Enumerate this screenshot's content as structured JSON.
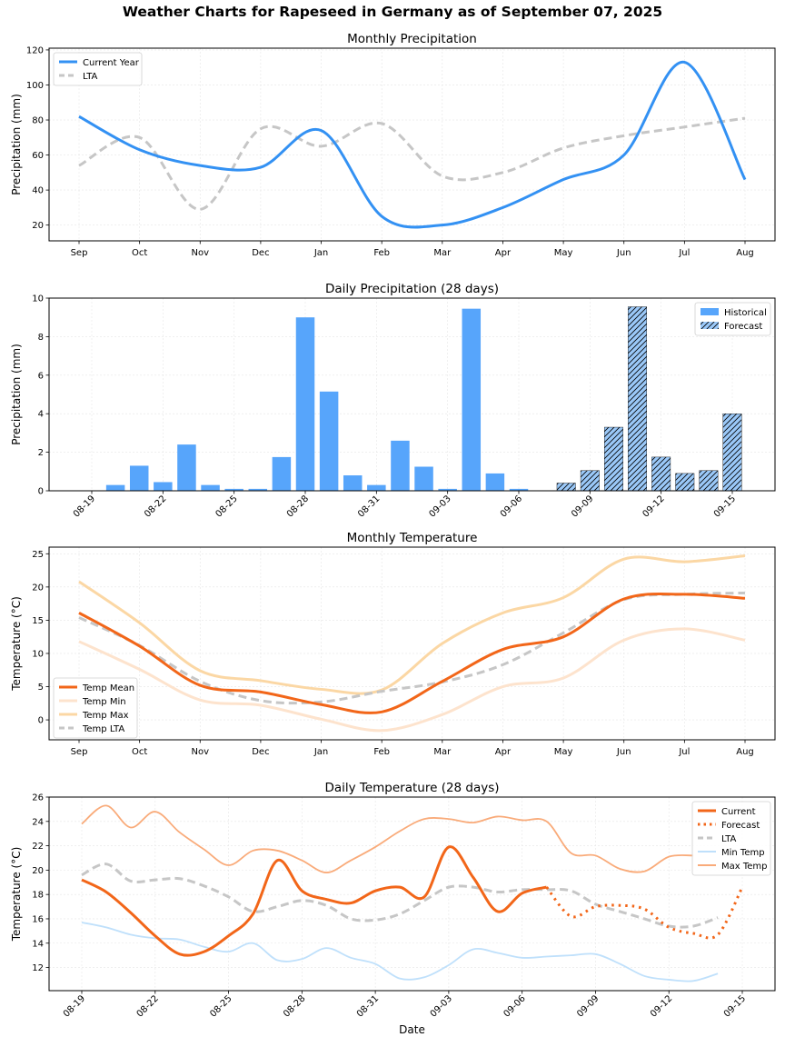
{
  "title": "Weather Charts for Rapeseed in Germany as of September 07, 2025",
  "colors": {
    "precip_current": "#3391f3",
    "lta": "#c6c6c6",
    "hist_bar": "#57a5fb",
    "forecast_bar": "#9ac8f8",
    "temp_mean": "#f26619",
    "temp_min": "#fde3cd",
    "temp_max": "#fbd7a4",
    "daily_min": "#bfe0fb",
    "daily_max": "#f9ab7a"
  },
  "chart_data": [
    {
      "id": "monthly_precip",
      "type": "line",
      "title": "Monthly Precipitation",
      "xlabel": "",
      "ylabel": "Precipitation (mm)",
      "categories": [
        "Sep",
        "Oct",
        "Nov",
        "Dec",
        "Jan",
        "Feb",
        "Mar",
        "Apr",
        "May",
        "Jun",
        "Jul",
        "Aug"
      ],
      "yticks": [
        20,
        40,
        60,
        80,
        100,
        120
      ],
      "ylim": [
        11,
        121
      ],
      "grid": true,
      "legend": "top-left",
      "series": [
        {
          "name": "Current Year",
          "style": "solid",
          "values": [
            82,
            63,
            54,
            53,
            74,
            25,
            20,
            30,
            46,
            60,
            113,
            46
          ]
        },
        {
          "name": "LTA",
          "style": "dashed",
          "values": [
            54,
            70,
            29,
            75,
            65,
            78,
            48,
            50,
            64,
            71,
            76,
            81
          ]
        }
      ]
    },
    {
      "id": "daily_precip",
      "type": "bar",
      "title": "Daily Precipitation (28 days)",
      "xlabel": "",
      "ylabel": "Precipitation (mm)",
      "categories": [
        "08-19",
        "08-20",
        "08-21",
        "08-22",
        "08-23",
        "08-24",
        "08-25",
        "08-26",
        "08-27",
        "08-28",
        "08-29",
        "08-30",
        "08-31",
        "09-01",
        "09-02",
        "09-03",
        "09-04",
        "09-05",
        "09-06",
        "09-07",
        "09-08",
        "09-09",
        "09-10",
        "09-11",
        "09-12",
        "09-13",
        "09-14",
        "09-15"
      ],
      "xtick_labels": [
        "08-19",
        "08-22",
        "08-25",
        "08-28",
        "08-31",
        "09-03",
        "09-06",
        "09-09",
        "09-12",
        "09-15"
      ],
      "yticks": [
        0,
        2,
        4,
        6,
        8,
        10
      ],
      "ylim": [
        0,
        10
      ],
      "grid": true,
      "legend": "top-right",
      "series": [
        {
          "name": "Historical",
          "values": [
            0,
            0.3,
            1.3,
            0.45,
            2.4,
            0.3,
            0.1,
            0.1,
            1.75,
            9.0,
            5.15,
            0.8,
            0.3,
            2.6,
            1.25,
            0.1,
            9.45,
            0.9,
            0.1,
            0,
            null,
            null,
            null,
            null,
            null,
            null,
            null,
            null
          ]
        },
        {
          "name": "Forecast",
          "values": [
            null,
            null,
            null,
            null,
            null,
            null,
            null,
            null,
            null,
            null,
            null,
            null,
            null,
            null,
            null,
            null,
            null,
            null,
            null,
            null,
            0.4,
            1.05,
            3.3,
            9.55,
            1.75,
            0.9,
            1.05,
            4.0
          ]
        }
      ]
    },
    {
      "id": "monthly_temp",
      "type": "line",
      "title": "Monthly Temperature",
      "xlabel": "",
      "ylabel": "Temperature (°C)",
      "categories": [
        "Sep",
        "Oct",
        "Nov",
        "Dec",
        "Jan",
        "Feb",
        "Mar",
        "Apr",
        "May",
        "Jun",
        "Jul",
        "Aug"
      ],
      "yticks": [
        0,
        5,
        10,
        15,
        20,
        25
      ],
      "ylim": [
        -3,
        26
      ],
      "grid": true,
      "legend": "bottom-left",
      "series": [
        {
          "name": "Temp Mean",
          "style": "solid",
          "values": [
            16.1,
            11.1,
            5.2,
            4.2,
            2.3,
            1.2,
            5.8,
            10.6,
            12.5,
            18.2,
            18.9,
            18.3
          ]
        },
        {
          "name": "Temp Min",
          "style": "solid",
          "values": [
            11.8,
            7.6,
            3.0,
            2.2,
            0.1,
            -1.6,
            0.8,
            5.0,
            6.3,
            12.0,
            13.7,
            12.0
          ]
        },
        {
          "name": "Temp Max",
          "style": "solid",
          "values": [
            20.8,
            14.6,
            7.4,
            5.9,
            4.6,
            4.5,
            11.5,
            16.1,
            18.4,
            24.2,
            23.8,
            24.7
          ]
        },
        {
          "name": "Temp LTA",
          "style": "dashed",
          "values": [
            15.4,
            11.2,
            5.8,
            2.9,
            2.7,
            4.3,
            5.7,
            8.3,
            13.1,
            18.1,
            18.9,
            19.1
          ]
        }
      ]
    },
    {
      "id": "daily_temp",
      "type": "line",
      "title": "Daily Temperature (28 days)",
      "xlabel": "Date",
      "ylabel": "Temperature (°C)",
      "categories": [
        "08-19",
        "08-20",
        "08-21",
        "08-22",
        "08-23",
        "08-24",
        "08-25",
        "08-26",
        "08-27",
        "08-28",
        "08-29",
        "08-30",
        "08-31",
        "09-01",
        "09-02",
        "09-03",
        "09-04",
        "09-05",
        "09-06",
        "09-07",
        "09-08",
        "09-09",
        "09-10",
        "09-11",
        "09-12",
        "09-13",
        "09-14",
        "09-15"
      ],
      "xtick_labels": [
        "08-19",
        "08-22",
        "08-25",
        "08-28",
        "08-31",
        "09-03",
        "09-06",
        "09-09",
        "09-12",
        "09-15"
      ],
      "yticks": [
        12,
        14,
        16,
        18,
        20,
        22,
        24,
        26
      ],
      "ylim": [
        10.1,
        26
      ],
      "grid": true,
      "legend": "top-right",
      "series": [
        {
          "name": "Current",
          "style": "solid",
          "values": [
            19.2,
            18.2,
            16.5,
            14.6,
            13.1,
            13.3,
            14.6,
            16.4,
            20.8,
            18.3,
            17.6,
            17.3,
            18.3,
            18.6,
            17.8,
            21.9,
            19.4,
            16.6,
            18.1,
            18.6,
            null,
            null,
            null,
            null,
            null,
            null,
            null,
            null
          ]
        },
        {
          "name": "Forecast",
          "style": "dotted",
          "values": [
            null,
            null,
            null,
            null,
            null,
            null,
            null,
            null,
            null,
            null,
            null,
            null,
            null,
            null,
            null,
            null,
            null,
            null,
            null,
            18.6,
            16.2,
            17.0,
            17.1,
            16.8,
            15.3,
            14.8,
            14.7,
            18.6
          ]
        },
        {
          "name": "LTA",
          "style": "dashed",
          "values": [
            19.6,
            20.5,
            19.1,
            19.2,
            19.3,
            18.7,
            17.8,
            16.6,
            17.0,
            17.5,
            17.1,
            16.0,
            15.9,
            16.4,
            17.5,
            18.6,
            18.6,
            18.2,
            18.4,
            18.4,
            18.3,
            17.2,
            16.6,
            16.0,
            15.4,
            15.4,
            16.1,
            null
          ]
        },
        {
          "name": "Min Temp",
          "style": "solid",
          "values": [
            15.7,
            15.3,
            14.7,
            14.4,
            14.3,
            13.7,
            13.3,
            14.0,
            12.6,
            12.7,
            13.6,
            12.8,
            12.3,
            11.1,
            11.2,
            12.2,
            13.5,
            13.2,
            12.8,
            12.9,
            13.0,
            13.1,
            12.3,
            11.3,
            11.0,
            10.9,
            11.5,
            null
          ]
        },
        {
          "name": "Max Temp",
          "style": "solid",
          "values": [
            23.8,
            25.3,
            23.5,
            24.8,
            23.1,
            21.7,
            20.4,
            21.6,
            21.6,
            20.8,
            19.8,
            20.8,
            21.9,
            23.2,
            24.2,
            24.2,
            23.9,
            24.4,
            24.1,
            24.0,
            21.4,
            21.2,
            20.1,
            19.9,
            21.1,
            21.2,
            null,
            null
          ]
        }
      ]
    }
  ]
}
